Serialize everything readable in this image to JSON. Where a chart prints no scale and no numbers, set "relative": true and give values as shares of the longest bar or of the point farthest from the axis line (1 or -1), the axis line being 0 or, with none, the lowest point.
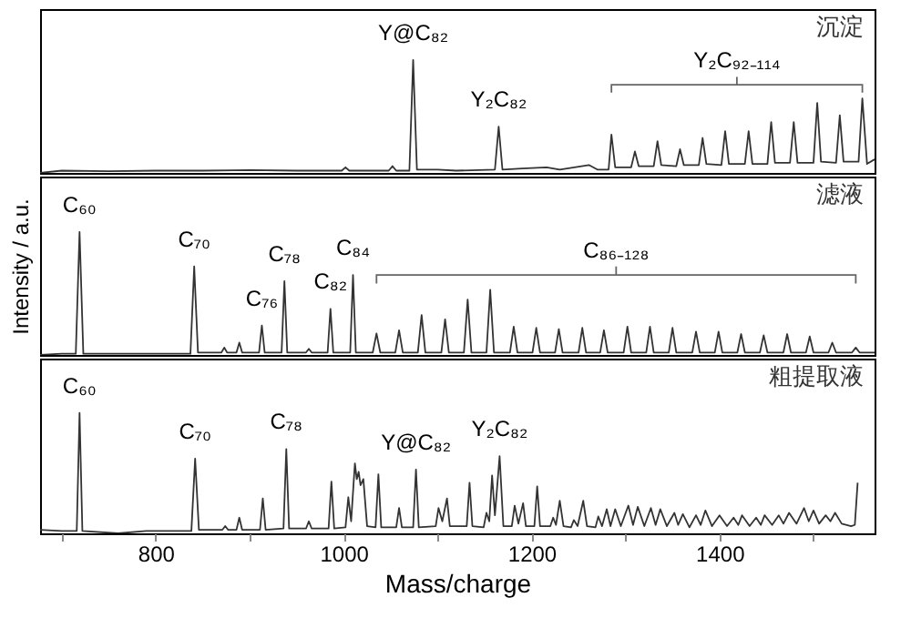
{
  "chart_data": [
    {
      "type": "line",
      "relative": true,
      "color": "#333333",
      "xlim": [
        677,
        1565
      ],
      "tick_labels": false,
      "x": [
        677,
        700,
        750,
        800,
        850,
        900,
        950,
        998,
        1002,
        1006,
        1048,
        1052,
        1056,
        1070,
        1074,
        1078,
        1100,
        1120,
        1161,
        1165,
        1169,
        1190,
        1216,
        1230,
        1261,
        1270,
        1282,
        1285,
        1289,
        1306,
        1310,
        1314,
        1330,
        1334,
        1338,
        1354,
        1358,
        1362,
        1378,
        1382,
        1386,
        1402,
        1406,
        1410,
        1427,
        1431,
        1435,
        1451,
        1455,
        1459,
        1475,
        1479,
        1483,
        1500,
        1504,
        1508,
        1524,
        1528,
        1532,
        1548,
        1552,
        1557,
        1565
      ],
      "values": [
        0,
        0.02,
        0.015,
        0.02,
        0.02,
        0.025,
        0.02,
        0.02,
        0.05,
        0.02,
        0.02,
        0.06,
        0.02,
        0.02,
        1,
        0.03,
        0.03,
        0.02,
        0.03,
        0.41,
        0.03,
        0.04,
        0.05,
        0.03,
        0.07,
        0.03,
        0.03,
        0.34,
        0.05,
        0.05,
        0.19,
        0.06,
        0.06,
        0.28,
        0.07,
        0.06,
        0.21,
        0.07,
        0.07,
        0.31,
        0.08,
        0.07,
        0.37,
        0.08,
        0.08,
        0.37,
        0.08,
        0.08,
        0.45,
        0.09,
        0.09,
        0.45,
        0.09,
        0.09,
        0.62,
        0.1,
        0.09,
        0.51,
        0.1,
        0.1,
        0.66,
        0.08,
        0.12
      ],
      "annotations": [
        {
          "text": "Y@C₈₂",
          "x": 1074,
          "y": 1
        },
        {
          "text": "Y₂C₈₂",
          "x": 1165,
          "y": 0.41
        },
        "Y₂C₉₂₋₁₁₄",
        "沉淀"
      ]
    },
    {
      "type": "line",
      "relative": true,
      "color": "#333333",
      "xlim": [
        677,
        1565
      ],
      "tick_labels": false,
      "ylabel": "Intensity / a.u.",
      "x": [
        677,
        700,
        715,
        719,
        723,
        760,
        800,
        837,
        841,
        845,
        870,
        873,
        876,
        886,
        889,
        892,
        910,
        913,
        916,
        934,
        937,
        940,
        960,
        963,
        966,
        983,
        986,
        989,
        1007,
        1010,
        1013,
        1031,
        1035,
        1039,
        1055,
        1059,
        1063,
        1079,
        1083,
        1087,
        1104,
        1108,
        1112,
        1128,
        1132,
        1136,
        1152,
        1156,
        1160,
        1177,
        1181,
        1185,
        1201,
        1205,
        1209,
        1225,
        1229,
        1233,
        1250,
        1254,
        1258,
        1273,
        1277,
        1281,
        1298,
        1302,
        1306,
        1322,
        1326,
        1330,
        1346,
        1350,
        1354,
        1371,
        1375,
        1379,
        1395,
        1399,
        1403,
        1419,
        1423,
        1427,
        1443,
        1447,
        1451,
        1468,
        1472,
        1476,
        1492,
        1496,
        1500,
        1516,
        1520,
        1524,
        1541,
        1545,
        1549,
        1565
      ],
      "values": [
        0,
        0.01,
        0.01,
        1,
        0.01,
        0.01,
        0.01,
        0.01,
        0.72,
        0.02,
        0.02,
        0.06,
        0.02,
        0.02,
        0.1,
        0.02,
        0.02,
        0.24,
        0.02,
        0.02,
        0.6,
        0.02,
        0.02,
        0.05,
        0.02,
        0.02,
        0.375,
        0.02,
        0.02,
        0.65,
        0.02,
        0.02,
        0.175,
        0.02,
        0.02,
        0.2,
        0.02,
        0.02,
        0.325,
        0.02,
        0.02,
        0.29,
        0.02,
        0.02,
        0.45,
        0.02,
        0.02,
        0.53,
        0.02,
        0.02,
        0.23,
        0.02,
        0.02,
        0.22,
        0.02,
        0.02,
        0.21,
        0.02,
        0.02,
        0.22,
        0.02,
        0.02,
        0.2,
        0.02,
        0.02,
        0.23,
        0.02,
        0.02,
        0.23,
        0.02,
        0.02,
        0.22,
        0.02,
        0.02,
        0.19,
        0.02,
        0.02,
        0.19,
        0.02,
        0.02,
        0.17,
        0.02,
        0.02,
        0.16,
        0.02,
        0.02,
        0.17,
        0.02,
        0.02,
        0.15,
        0.02,
        0.02,
        0.1,
        0.02,
        0.02,
        0.06,
        0.02,
        0.02
      ],
      "annotations": [
        {
          "text": "C₆₀",
          "x": 719,
          "y": 1
        },
        {
          "text": "C₇₀",
          "x": 841,
          "y": 0.72
        },
        {
          "text": "C₇₆",
          "x": 913,
          "y": 0.24
        },
        {
          "text": "C₇₈",
          "x": 937,
          "y": 0.6
        },
        {
          "text": "C₈₂",
          "x": 986,
          "y": 0.375
        },
        {
          "text": "C₈₄",
          "x": 1010,
          "y": 0.65
        },
        "C₈₆₋₁₂₈",
        "滤液"
      ]
    },
    {
      "type": "line",
      "relative": true,
      "color": "#333333",
      "xlim": [
        677,
        1565
      ],
      "xlabel": "Mass/charge",
      "xticks": [
        {
          "value": 700,
          "label": null
        },
        800,
        {
          "value": 900,
          "label": null
        },
        1000,
        {
          "value": 1100,
          "label": null
        },
        1200,
        {
          "value": 1300,
          "label": null
        },
        1400,
        {
          "value": 1500,
          "label": null
        }
      ],
      "x": [
        677,
        700,
        716,
        719,
        722,
        760,
        790,
        810,
        838,
        842,
        846,
        871,
        874,
        877,
        886,
        889,
        892,
        911,
        914,
        917,
        936,
        939,
        942,
        960,
        963,
        966,
        984,
        987,
        990,
        1002,
        1005,
        1008,
        1012,
        1014,
        1016,
        1018,
        1021,
        1025,
        1034,
        1037,
        1040,
        1056,
        1059,
        1062,
        1074,
        1077,
        1080,
        1098,
        1101,
        1105,
        1110,
        1113,
        1131,
        1134,
        1137,
        1149,
        1152,
        1155,
        1158,
        1161,
        1166,
        1170,
        1179,
        1182,
        1186,
        1191,
        1194,
        1203,
        1206,
        1209,
        1220,
        1223,
        1226,
        1230,
        1234,
        1242,
        1245,
        1249,
        1255,
        1259,
        1268,
        1271,
        1275,
        1280,
        1284,
        1289,
        1295,
        1303,
        1308,
        1313,
        1320,
        1327,
        1332,
        1337,
        1344,
        1352,
        1356,
        1361,
        1368,
        1375,
        1380,
        1385,
        1392,
        1400,
        1408,
        1415,
        1420,
        1424,
        1432,
        1439,
        1444,
        1448,
        1456,
        1463,
        1468,
        1474,
        1482,
        1490,
        1495,
        1500,
        1506,
        1513,
        1518,
        1523,
        1530,
        1540,
        1544,
        1547
      ],
      "values": [
        0.03,
        0.02,
        0.02,
        1,
        0.02,
        0,
        0.02,
        0.02,
        0.02,
        0.62,
        0.03,
        0.03,
        0.06,
        0.03,
        0.03,
        0.13,
        0.03,
        0.03,
        0.29,
        0.03,
        0.04,
        0.7,
        0.04,
        0.04,
        0.1,
        0.04,
        0.04,
        0.43,
        0.04,
        0.05,
        0.3,
        0.1,
        0.58,
        0.45,
        0.51,
        0.4,
        0.45,
        0.06,
        0.05,
        0.49,
        0.05,
        0.05,
        0.21,
        0.05,
        0.05,
        0.53,
        0.05,
        0.06,
        0.21,
        0.1,
        0.29,
        0.06,
        0.06,
        0.42,
        0.06,
        0.05,
        0.17,
        0.1,
        0.48,
        0.15,
        0.64,
        0.06,
        0.06,
        0.23,
        0.08,
        0.25,
        0.06,
        0.06,
        0.39,
        0.06,
        0.06,
        0.13,
        0.07,
        0.27,
        0.06,
        0.05,
        0.11,
        0.06,
        0.27,
        0.06,
        0.05,
        0.14,
        0.06,
        0.2,
        0.06,
        0.2,
        0.06,
        0.23,
        0.07,
        0.22,
        0.06,
        0.21,
        0.07,
        0.2,
        0.06,
        0.17,
        0.07,
        0.16,
        0.05,
        0.15,
        0.07,
        0.19,
        0.06,
        0.15,
        0.06,
        0.13,
        0.07,
        0.15,
        0.06,
        0.13,
        0.07,
        0.15,
        0.07,
        0.15,
        0.08,
        0.17,
        0.08,
        0.21,
        0.1,
        0.19,
        0.08,
        0.15,
        0.1,
        0.17,
        0.08,
        0.06,
        0.07,
        0.42
      ],
      "annotations": [
        {
          "text": "C₆₀",
          "x": 719,
          "y": 1
        },
        {
          "text": "C₇₀",
          "x": 842,
          "y": 0.62
        },
        {
          "text": "C₇₈",
          "x": 939,
          "y": 0.7
        },
        {
          "text": "Y@C₈₂",
          "x": 1077,
          "y": 0.53
        },
        {
          "text": "Y₂C₈₂",
          "x": 1166,
          "y": 0.64
        },
        "粗提取液"
      ]
    }
  ]
}
